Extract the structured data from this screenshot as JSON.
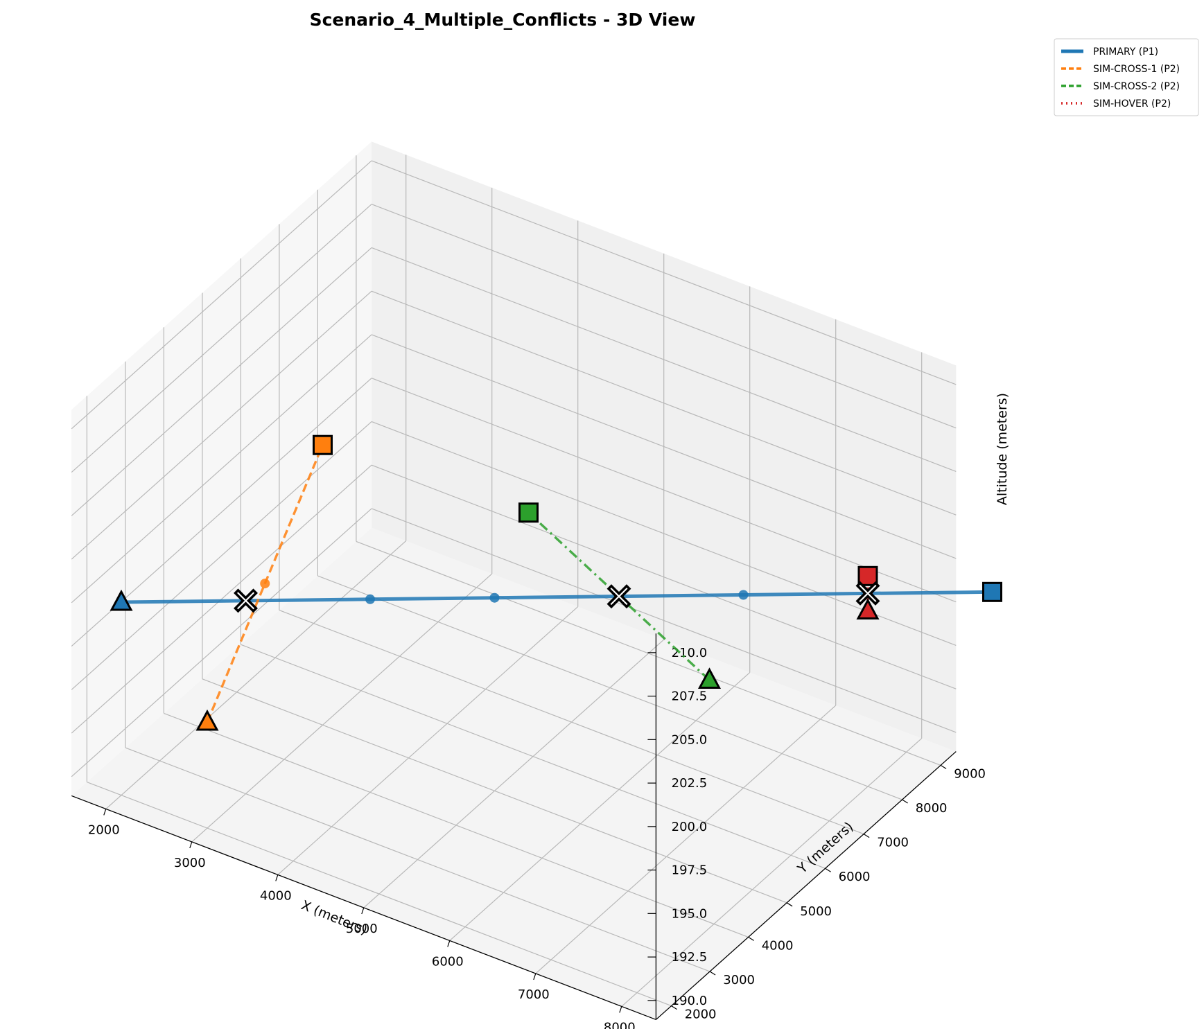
{
  "chart_data": {
    "type": "line",
    "projection": "3d",
    "title": "Scenario_4_Multiple_Conflicts - 3D View",
    "xlabel": "X (meters)",
    "ylabel": "Y (meters)",
    "zlabel": "Altitude (meters)",
    "xlim": [
      1600,
      8400
    ],
    "ylim": [
      1600,
      9400
    ],
    "zlim": [
      188.9,
      211.1
    ],
    "x_ticks": [
      "2000",
      "3000",
      "4000",
      "5000",
      "6000",
      "7000",
      "8000"
    ],
    "y_ticks": [
      "2000",
      "3000",
      "4000",
      "5000",
      "6000",
      "7000",
      "8000",
      "9000"
    ],
    "z_ticks": [
      "190.0",
      "192.5",
      "195.0",
      "197.5",
      "200.0",
      "202.5",
      "205.0",
      "207.5",
      "210.0"
    ],
    "grid": true,
    "legend_position": "upper-right-outside",
    "series": [
      {
        "name": "PRIMARY (P1)",
        "color": "#1f77b4",
        "linestyle": "solid",
        "points": [
          [
            2000,
            2000,
            200
          ],
          [
            3000,
            3000,
            200
          ],
          [
            4000,
            4000,
            200
          ],
          [
            5000,
            5000,
            200
          ],
          [
            6000,
            6000,
            200
          ],
          [
            7000,
            7000,
            200
          ],
          [
            8000,
            8000,
            200
          ],
          [
            9000,
            9000,
            200
          ]
        ]
      },
      {
        "name": "SIM-CROSS-1 (P2)",
        "color": "#ff7f0e",
        "linestyle": "dashed",
        "points": [
          [
            3000,
            2000,
            195
          ],
          [
            3000,
            3500,
            200
          ],
          [
            3000,
            5000,
            205
          ]
        ]
      },
      {
        "name": "SIM-CROSS-2 (P2)",
        "color": "#2ca02c",
        "linestyle": "dashdot",
        "points": [
          [
            7500,
            5000,
            200
          ],
          [
            6000,
            6000,
            200
          ],
          [
            4500,
            7000,
            200
          ]
        ]
      },
      {
        "name": "SIM-HOVER (P2)",
        "color": "#d62728",
        "linestyle": "dotted",
        "points": [
          [
            8000,
            8000,
            199
          ],
          [
            8000,
            8000,
            200
          ],
          [
            8000,
            8000,
            201
          ]
        ]
      }
    ],
    "start_markers": [
      "triangle",
      "triangle",
      "triangle",
      "triangle"
    ],
    "end_markers": [
      "square",
      "square",
      "square",
      "square"
    ],
    "conflicts": [
      [
        3000,
        3000,
        200
      ],
      [
        6000,
        6000,
        200
      ],
      [
        8000,
        8000,
        200
      ]
    ]
  }
}
